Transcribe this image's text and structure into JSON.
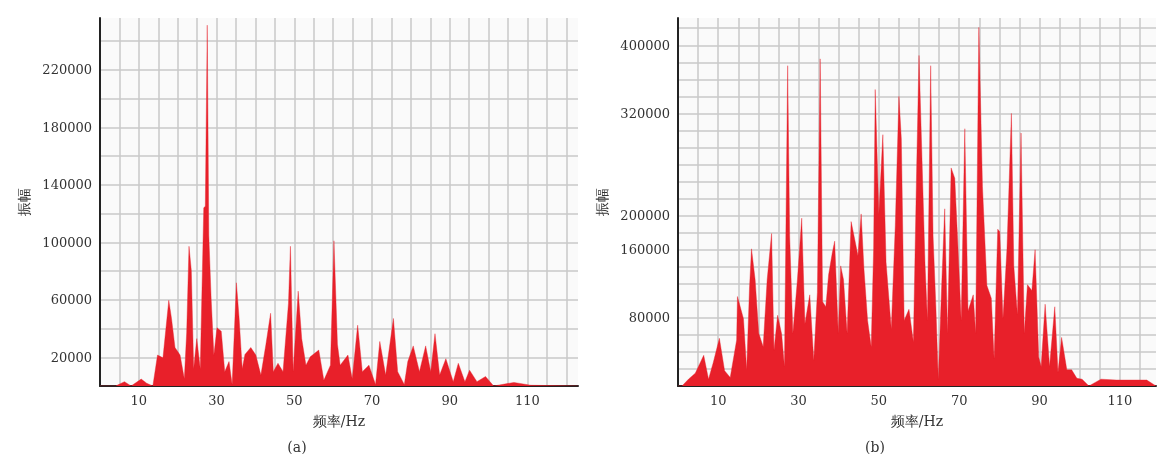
{
  "chart_data": [
    {
      "type": "area",
      "xlabel": "频率/Hz",
      "ylabel": "振幅",
      "annotations": [
        "(a)"
      ],
      "color": "#e8202a",
      "grid": true,
      "xlim": [
        0,
        123
      ],
      "ylim": [
        0,
        256000
      ],
      "xticks": [
        {
          "value": 0,
          "label": null
        },
        {
          "value": 5,
          "label": null
        },
        10,
        {
          "value": 15,
          "label": null
        },
        {
          "value": 20,
          "label": null
        },
        {
          "value": 25,
          "label": null
        },
        30,
        {
          "value": 35,
          "label": null
        },
        {
          "value": 40,
          "label": null
        },
        {
          "value": 45,
          "label": null
        },
        50,
        {
          "value": 55,
          "label": null
        },
        {
          "value": 60,
          "label": null
        },
        {
          "value": 65,
          "label": null
        },
        70,
        {
          "value": 75,
          "label": null
        },
        {
          "value": 80,
          "label": null
        },
        {
          "value": 85,
          "label": null
        },
        90,
        {
          "value": 95,
          "label": null
        },
        {
          "value": 100,
          "label": null
        },
        {
          "value": 105,
          "label": null
        },
        110,
        {
          "value": 115,
          "label": null
        },
        {
          "value": 120,
          "label": null
        }
      ],
      "yticks": [
        {
          "value": 0,
          "label": null
        },
        20000,
        {
          "value": 40000,
          "label": null
        },
        60000,
        {
          "value": 80000,
          "label": null
        },
        100000,
        {
          "value": 120000,
          "label": null
        },
        140000,
        {
          "value": 160000,
          "label": null
        },
        180000,
        {
          "value": 200000,
          "label": null
        },
        220000,
        {
          "value": 240000,
          "label": null
        }
      ],
      "x": [
        0,
        4,
        6.3,
        8,
        10.6,
        12,
        13.6,
        14.8,
        16.2,
        17.7,
        18.4,
        19.3,
        20.6,
        21.7,
        22.3,
        22.9,
        23.5,
        24.1,
        24.9,
        25.8,
        26.7,
        27.1,
        27.6,
        28.0,
        28.6,
        29.3,
        30.1,
        31.2,
        32.1,
        33.2,
        34.0,
        35.1,
        35.8,
        36.6,
        37.3,
        38.8,
        40.1,
        41.4,
        42.7,
        43.9,
        44.6,
        45.8,
        47.1,
        48.5,
        49.0,
        49.7,
        51.0,
        51.9,
        53.0,
        54.1,
        56.3,
        57.6,
        59.3,
        60.2,
        61.1,
        61.8,
        63.8,
        64.9,
        66.3,
        67.5,
        69.2,
        70.9,
        72.0,
        73.5,
        75.5,
        76.6,
        78.3,
        79.2,
        80.6,
        82.2,
        83.8,
        85.1,
        86.2,
        87.4,
        89.0,
        90.9,
        92.2,
        93.9,
        95.1,
        97.0,
        99.2,
        101.3,
        106.5,
        110.9,
        123
      ],
      "values": [
        0,
        0,
        3000,
        0,
        4800,
        2000,
        0,
        21500,
        19600,
        59600,
        47000,
        26800,
        21500,
        5000,
        37000,
        97200,
        80400,
        12000,
        33000,
        12000,
        124000,
        125000,
        251000,
        104700,
        60800,
        21500,
        40500,
        38100,
        10000,
        17000,
        1000,
        71800,
        47000,
        12000,
        22000,
        26800,
        21500,
        7600,
        29000,
        50600,
        10000,
        15800,
        10000,
        57600,
        97200,
        10000,
        66000,
        33000,
        14500,
        20300,
        25000,
        4000,
        14500,
        101000,
        29000,
        14500,
        21500,
        5000,
        42300,
        10000,
        14500,
        1000,
        31000,
        7600,
        47000,
        10000,
        1000,
        17000,
        27900,
        10000,
        27900,
        10000,
        36400,
        7600,
        19000,
        3000,
        15800,
        3000,
        11000,
        3000,
        6600,
        0,
        2500,
        500,
        0
      ]
    },
    {
      "type": "area",
      "xlabel": "频率/Hz",
      "ylabel": "振幅",
      "annotations": [
        "(b)"
      ],
      "color": "#e8202a",
      "grid": true,
      "xlim": [
        0,
        119
      ],
      "ylim": [
        0,
        432000
      ],
      "xticks": [
        {
          "value": 0,
          "label": null
        },
        {
          "value": 5,
          "label": null
        },
        10,
        {
          "value": 15,
          "label": null
        },
        {
          "value": 20,
          "label": null
        },
        {
          "value": 25,
          "label": null
        },
        30,
        {
          "value": 35,
          "label": null
        },
        {
          "value": 40,
          "label": null
        },
        {
          "value": 45,
          "label": null
        },
        50,
        {
          "value": 55,
          "label": null
        },
        {
          "value": 60,
          "label": null
        },
        {
          "value": 65,
          "label": null
        },
        70,
        {
          "value": 75,
          "label": null
        },
        {
          "value": 80,
          "label": null
        },
        {
          "value": 85,
          "label": null
        },
        90,
        {
          "value": 95,
          "label": null
        },
        {
          "value": 100,
          "label": null
        },
        {
          "value": 105,
          "label": null
        },
        110,
        {
          "value": 115,
          "label": null
        }
      ],
      "yticks": [
        {
          "value": 0,
          "label": null
        },
        {
          "value": 20000,
          "label": null
        },
        {
          "value": 40000,
          "label": null
        },
        {
          "value": 60000,
          "label": null
        },
        80000,
        {
          "value": 100000,
          "label": null
        },
        {
          "value": 120000,
          "label": null
        },
        {
          "value": 140000,
          "label": null
        },
        160000,
        {
          "value": 180000,
          "label": null
        },
        200000,
        {
          "value": 220000,
          "label": null
        },
        {
          "value": 240000,
          "label": null
        },
        {
          "value": 260000,
          "label": null
        },
        {
          "value": 280000,
          "label": null
        },
        {
          "value": 300000,
          "label": null
        },
        320000,
        {
          "value": 340000,
          "label": null
        },
        {
          "value": 360000,
          "label": null
        },
        {
          "value": 380000,
          "label": null
        },
        400000,
        {
          "value": 420000,
          "label": null
        }
      ],
      "x": [
        0,
        1.0,
        2.6,
        4.3,
        6.4,
        7.6,
        8.8,
        10.3,
        11.6,
        13.0,
        14.6,
        14.8,
        16.3,
        17.1,
        17.8,
        18.3,
        19.2,
        20.1,
        21.2,
        22.2,
        23.3,
        23.9,
        24.8,
        25.8,
        26.5,
        27.3,
        27.8,
        28.6,
        29.7,
        30.8,
        31.6,
        32.8,
        33.8,
        34.7,
        35.4,
        36.0,
        36.8,
        37.5,
        38.4,
        39.0,
        39.9,
        40.5,
        41.2,
        42.1,
        43.1,
        44.0,
        44.8,
        45.6,
        46.3,
        47.2,
        48.1,
        48.7,
        49.1,
        50.0,
        51.0,
        51.8,
        53.1,
        54.1,
        55.0,
        55.6,
        56.3,
        57.5,
        58.6,
        59.4,
        60.0,
        61.5,
        62.1,
        62.9,
        63.5,
        64.2,
        64.8,
        65.7,
        66.4,
        67.1,
        68.0,
        68.9,
        69.6,
        70.5,
        71.4,
        72.2,
        73.5,
        74.1,
        74.9,
        75.8,
        76.9,
        78.0,
        78.7,
        79.6,
        80.1,
        80.9,
        81.9,
        83.0,
        83.6,
        84.5,
        85.4,
        86.2,
        87.0,
        88.1,
        88.9,
        89.8,
        90.4,
        91.4,
        92.5,
        93.8,
        94.6,
        95.5,
        96.8,
        98.0,
        99.3,
        100.6,
        102.3,
        105.3,
        109.1,
        116.7,
        119
      ],
      "values": [
        0,
        0,
        8000,
        15000,
        36000,
        8000,
        28000,
        56000,
        18000,
        10000,
        54000,
        105000,
        79000,
        19000,
        115000,
        161000,
        125000,
        62000,
        46000,
        125000,
        179000,
        42000,
        83000,
        61000,
        23000,
        376000,
        176000,
        62000,
        123000,
        197000,
        73000,
        107000,
        30000,
        110000,
        384000,
        99000,
        93000,
        131000,
        156000,
        170000,
        62000,
        141000,
        125000,
        62000,
        193000,
        172000,
        153000,
        202000,
        137000,
        77000,
        46000,
        161000,
        348000,
        202000,
        295000,
        145000,
        67000,
        189000,
        340000,
        290000,
        77000,
        90000,
        52000,
        252000,
        388000,
        143000,
        77000,
        376000,
        176000,
        93000,
        8000,
        125000,
        208000,
        62000,
        256000,
        244000,
        174000,
        77000,
        302000,
        88000,
        107000,
        62000,
        421000,
        234000,
        118000,
        103000,
        32000,
        184000,
        181000,
        79000,
        161000,
        320000,
        141000,
        84000,
        297000,
        62000,
        119000,
        112000,
        160000,
        34000,
        23000,
        96000,
        23000,
        93000,
        16000,
        57000,
        19000,
        19000,
        9000,
        8000,
        0,
        8000,
        7000,
        7000,
        0
      ]
    }
  ]
}
